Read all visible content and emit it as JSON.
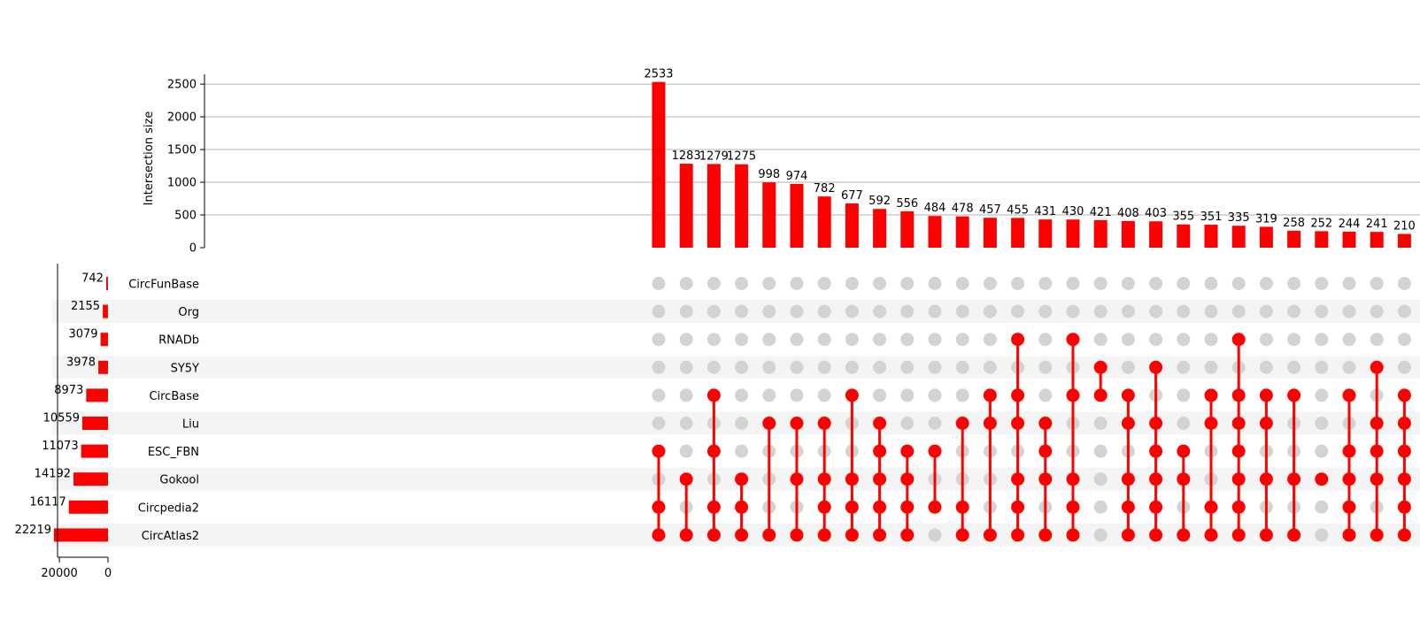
{
  "chart_data": {
    "type": "upset",
    "ylabel": "Intersection size",
    "ylim": [
      0,
      2650
    ],
    "yticks": [
      0,
      500,
      1000,
      1500,
      2000,
      2500
    ],
    "grid": true,
    "set_size_ticks": [
      20000,
      0
    ],
    "bar_color": "#ff0000",
    "inactive_dot_color": "#d3d3d3",
    "stripe_color": "#f4f4f4",
    "sets": [
      {
        "name": "CircFunBase",
        "size": 742
      },
      {
        "name": "Org",
        "size": 2155
      },
      {
        "name": "RNADb",
        "size": 3079
      },
      {
        "name": "SY5Y",
        "size": 3978
      },
      {
        "name": "CircBase",
        "size": 8973
      },
      {
        "name": "Liu",
        "size": 10559
      },
      {
        "name": "ESC_FBN",
        "size": 11073
      },
      {
        "name": "Gokool",
        "size": 14192
      },
      {
        "name": "Circpedia2",
        "size": 16117
      },
      {
        "name": "CircAtlas2",
        "size": 22219
      }
    ],
    "intersections": [
      {
        "value": 2533,
        "members": [
          "ESC_FBN",
          "Circpedia2",
          "CircAtlas2"
        ]
      },
      {
        "value": 1283,
        "members": [
          "Gokool",
          "CircAtlas2"
        ]
      },
      {
        "value": 1279,
        "members": [
          "CircBase",
          "ESC_FBN",
          "Circpedia2",
          "CircAtlas2"
        ]
      },
      {
        "value": 1275,
        "members": [
          "Gokool",
          "Circpedia2",
          "CircAtlas2"
        ]
      },
      {
        "value": 998,
        "members": [
          "Liu",
          "CircAtlas2"
        ]
      },
      {
        "value": 974,
        "members": [
          "Liu",
          "Gokool",
          "CircAtlas2"
        ]
      },
      {
        "value": 782,
        "members": [
          "Liu",
          "Gokool",
          "Circpedia2",
          "CircAtlas2"
        ]
      },
      {
        "value": 677,
        "members": [
          "CircBase",
          "Gokool",
          "Circpedia2",
          "CircAtlas2"
        ]
      },
      {
        "value": 592,
        "members": [
          "Liu",
          "ESC_FBN",
          "Gokool",
          "Circpedia2",
          "CircAtlas2"
        ]
      },
      {
        "value": 556,
        "members": [
          "ESC_FBN",
          "Gokool",
          "Circpedia2",
          "CircAtlas2"
        ]
      },
      {
        "value": 484,
        "members": [
          "ESC_FBN",
          "Circpedia2"
        ]
      },
      {
        "value": 478,
        "members": [
          "Liu",
          "Circpedia2",
          "CircAtlas2"
        ]
      },
      {
        "value": 457,
        "members": [
          "CircBase",
          "Liu",
          "CircAtlas2"
        ]
      },
      {
        "value": 455,
        "members": [
          "RNADb",
          "CircBase",
          "Liu",
          "Gokool",
          "Circpedia2",
          "CircAtlas2"
        ]
      },
      {
        "value": 431,
        "members": [
          "Liu",
          "ESC_FBN",
          "Gokool",
          "CircAtlas2"
        ]
      },
      {
        "value": 430,
        "members": [
          "RNADb",
          "CircBase",
          "Gokool",
          "Circpedia2",
          "CircAtlas2"
        ]
      },
      {
        "value": 421,
        "members": [
          "SY5Y",
          "CircBase"
        ]
      },
      {
        "value": 408,
        "members": [
          "CircBase",
          "Liu",
          "Gokool",
          "Circpedia2",
          "CircAtlas2"
        ]
      },
      {
        "value": 403,
        "members": [
          "SY5Y",
          "Liu",
          "ESC_FBN",
          "Gokool",
          "Circpedia2",
          "CircAtlas2"
        ]
      },
      {
        "value": 355,
        "members": [
          "ESC_FBN",
          "Gokool",
          "CircAtlas2"
        ]
      },
      {
        "value": 351,
        "members": [
          "CircBase",
          "Liu",
          "Circpedia2",
          "CircAtlas2"
        ]
      },
      {
        "value": 335,
        "members": [
          "RNADb",
          "CircBase",
          "Liu",
          "ESC_FBN",
          "Gokool",
          "Circpedia2",
          "CircAtlas2"
        ]
      },
      {
        "value": 319,
        "members": [
          "CircBase",
          "Liu",
          "Gokool",
          "CircAtlas2"
        ]
      },
      {
        "value": 258,
        "members": [
          "CircBase",
          "Gokool",
          "CircAtlas2"
        ]
      },
      {
        "value": 252,
        "members": [
          "Gokool"
        ]
      },
      {
        "value": 244,
        "members": [
          "CircBase",
          "ESC_FBN",
          "Gokool",
          "Circpedia2",
          "CircAtlas2"
        ]
      },
      {
        "value": 241,
        "members": [
          "SY5Y",
          "Liu",
          "ESC_FBN",
          "Gokool",
          "CircAtlas2"
        ]
      },
      {
        "value": 210,
        "members": [
          "CircBase",
          "Liu",
          "ESC_FBN",
          "Gokool",
          "Circpedia2",
          "CircAtlas2"
        ]
      }
    ]
  }
}
